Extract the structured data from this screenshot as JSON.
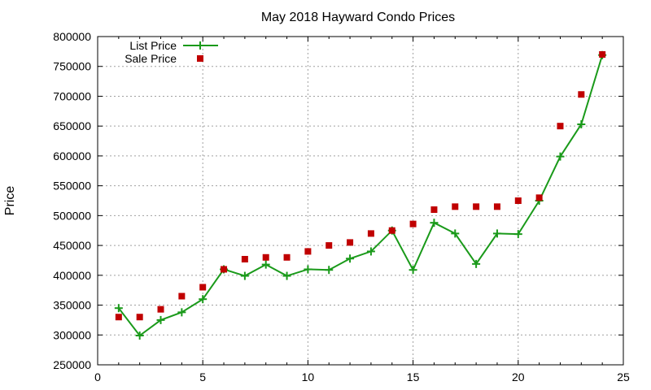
{
  "chart_data": {
    "type": "line",
    "title": "May 2018 Hayward Condo Prices",
    "xlabel": "",
    "ylabel": "Price",
    "xlim": [
      0,
      25
    ],
    "ylim": [
      250000,
      800000
    ],
    "x_ticks": [
      0,
      5,
      10,
      15,
      20,
      25
    ],
    "y_ticks": [
      250000,
      300000,
      350000,
      400000,
      450000,
      500000,
      550000,
      600000,
      650000,
      700000,
      750000,
      800000
    ],
    "grid": true,
    "legend_position": "top-left",
    "series": [
      {
        "name": "List Price",
        "style": "line-plus",
        "color": "#1a9a1a",
        "x": [
          1,
          2,
          3,
          4,
          5,
          6,
          7,
          8,
          9,
          10,
          11,
          12,
          13,
          14,
          15,
          16,
          17,
          18,
          19,
          20,
          21,
          22,
          23,
          24
        ],
        "values": [
          345000,
          299000,
          325000,
          338000,
          360000,
          410000,
          399000,
          418000,
          399000,
          410000,
          409000,
          428000,
          440000,
          475000,
          409000,
          488000,
          470000,
          419000,
          470000,
          469000,
          525000,
          599000,
          653000,
          769000
        ]
      },
      {
        "name": "Sale Price",
        "style": "square",
        "color": "#c00000",
        "x": [
          1,
          2,
          3,
          4,
          5,
          6,
          7,
          8,
          9,
          10,
          11,
          12,
          13,
          14,
          15,
          16,
          17,
          18,
          19,
          20,
          21,
          22,
          23,
          24
        ],
        "values": [
          330000,
          330000,
          343000,
          365000,
          380000,
          410000,
          427000,
          430000,
          430000,
          440000,
          450000,
          455000,
          470000,
          475000,
          486000,
          510000,
          515000,
          515000,
          515000,
          525000,
          530000,
          650000,
          703000,
          770000
        ]
      }
    ]
  }
}
